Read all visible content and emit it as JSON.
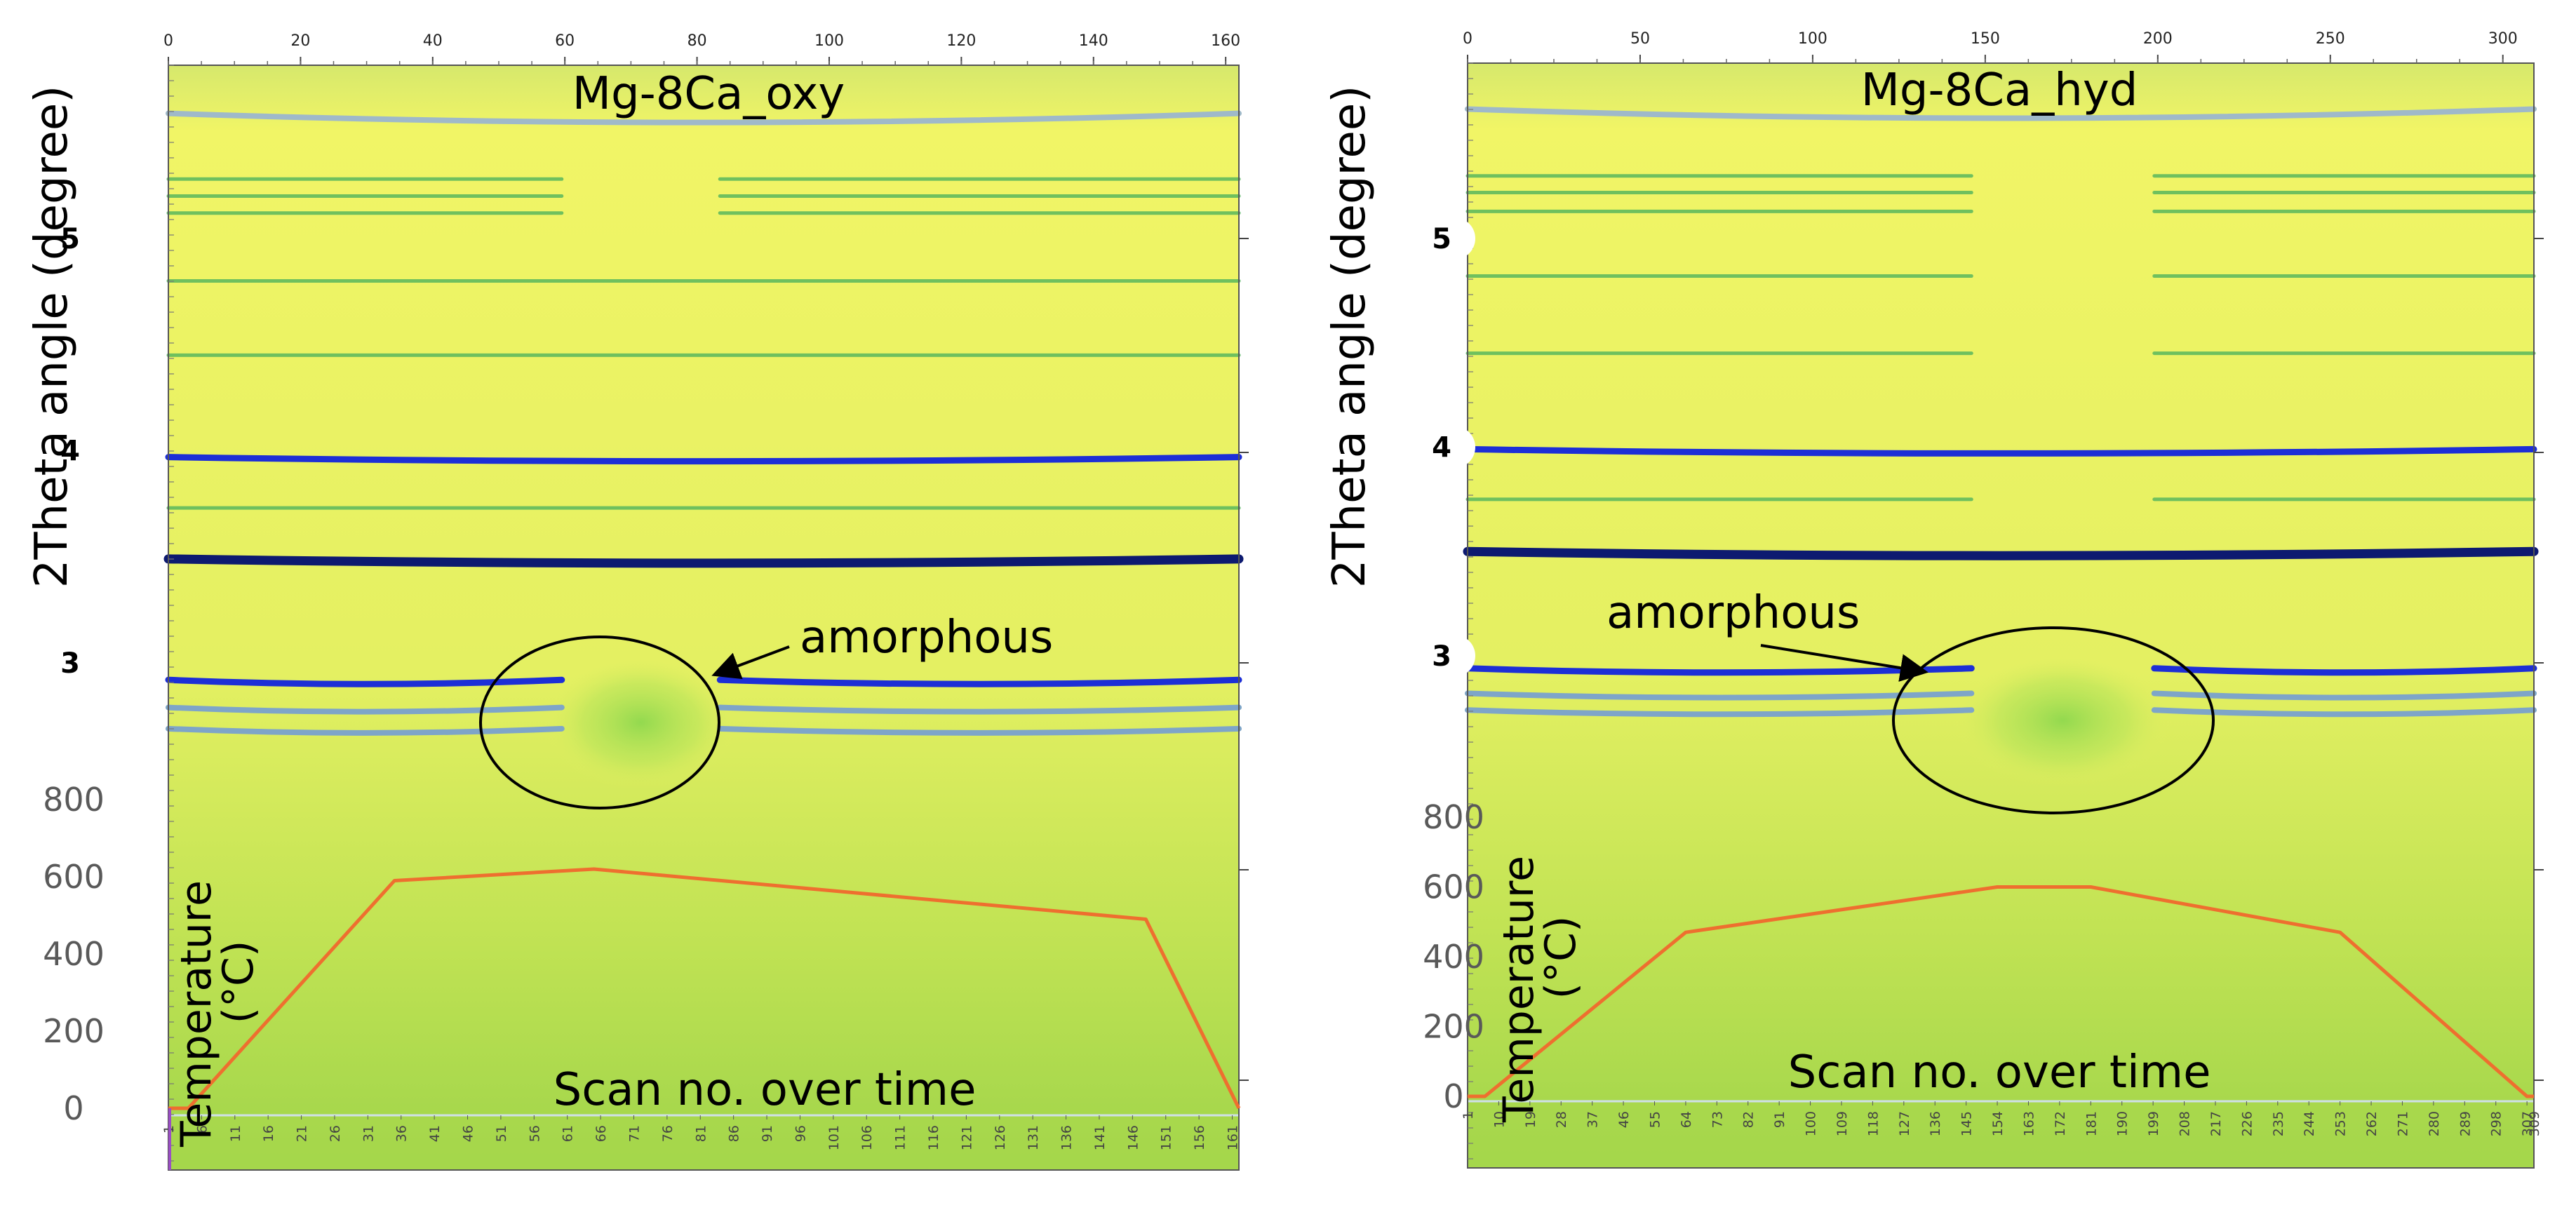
{
  "chart_data": [
    {
      "type": "heatmap",
      "title": "Mg-8Ca_oxy",
      "ylabel": "2Theta angle (degree)",
      "xlabel": "Scan no. over time",
      "temperature_label": [
        "Temperature",
        "(°C)"
      ],
      "annotation": "amorphous",
      "top_axis": {
        "range": [
          0,
          162
        ],
        "ticks": [
          0,
          20,
          40,
          60,
          80,
          100,
          120,
          140,
          160
        ]
      },
      "bottom_axis": {
        "range": [
          1,
          162
        ],
        "tick_start": 1,
        "tick_end": 161,
        "tick_step": 5
      },
      "theta_ticks": [
        "5",
        "4",
        "3"
      ],
      "temperature_ticks": [
        800,
        600,
        400,
        200,
        0
      ],
      "temperature_ylim": [
        0,
        800
      ],
      "amorphous_region": {
        "scan_start": 59,
        "scan_end": 84
      },
      "diffraction_lines": [
        {
          "theta": 5.55,
          "color": "#9fb9c9",
          "strength": "medium",
          "gap": false,
          "curved": true
        },
        {
          "theta": 5.28,
          "color": "#4fb35c",
          "strength": "weak",
          "gap": true
        },
        {
          "theta": 5.2,
          "color": "#4fb35c",
          "strength": "weak",
          "gap": true
        },
        {
          "theta": 5.12,
          "color": "#4fb35c",
          "strength": "weak",
          "gap": true
        },
        {
          "theta": 4.8,
          "color": "#4fb35c",
          "strength": "weak",
          "gap": false
        },
        {
          "theta": 4.45,
          "color": "#4fb35c",
          "strength": "weak",
          "gap": false
        },
        {
          "theta": 3.95,
          "color": "#1d2fd6",
          "strength": "strong",
          "gap": false
        },
        {
          "theta": 3.73,
          "color": "#4fb35c",
          "strength": "weak",
          "gap": false
        },
        {
          "theta": 3.47,
          "color": "#0d1a70",
          "strength": "very strong",
          "gap": false
        },
        {
          "theta": 2.9,
          "color": "#1d2fd6",
          "strength": "strong",
          "gap": true
        },
        {
          "theta": 2.77,
          "color": "#7ea5c8",
          "strength": "medium",
          "gap": true
        },
        {
          "theta": 2.67,
          "color": "#7ea5c8",
          "strength": "medium",
          "gap": true
        }
      ],
      "temperature_profile": {
        "scan": [
          1,
          4,
          35,
          65,
          148,
          162
        ],
        "temperature": [
          0,
          0,
          590,
          620,
          490,
          0
        ]
      }
    },
    {
      "type": "heatmap",
      "title": "Mg-8Ca_hyd",
      "ylabel": "2Theta angle (degree)",
      "xlabel": "Scan no. over time",
      "temperature_label": [
        "Temperature",
        "(°C)"
      ],
      "annotation": "amorphous",
      "top_axis": {
        "range": [
          0,
          309
        ],
        "ticks": [
          0,
          50,
          100,
          150,
          200,
          250,
          300
        ]
      },
      "bottom_axis": {
        "range": [
          1,
          309
        ],
        "tick_start": 1,
        "tick_end": 307,
        "tick_step": 9,
        "last_tick": 309
      },
      "theta_ticks": [
        "5",
        "4",
        "3"
      ],
      "temperature_ticks": [
        800,
        600,
        400,
        200,
        0
      ],
      "temperature_ylim": [
        0,
        800
      ],
      "amorphous_region": {
        "scan_start": 145,
        "scan_end": 200
      },
      "diffraction_lines": [
        {
          "theta": 5.58,
          "color": "#9fb9c9",
          "strength": "medium",
          "gap": false,
          "curved": true
        },
        {
          "theta": 5.3,
          "color": "#4fb35c",
          "strength": "weak",
          "gap": true
        },
        {
          "theta": 5.22,
          "color": "#4fb35c",
          "strength": "weak",
          "gap": true
        },
        {
          "theta": 5.13,
          "color": "#4fb35c",
          "strength": "weak",
          "gap": true
        },
        {
          "theta": 4.82,
          "color": "#4fb35c",
          "strength": "weak",
          "gap": true
        },
        {
          "theta": 4.45,
          "color": "#4fb35c",
          "strength": "weak",
          "gap": true
        },
        {
          "theta": 3.97,
          "color": "#1d2fd6",
          "strength": "strong",
          "gap": false
        },
        {
          "theta": 3.75,
          "color": "#4fb35c",
          "strength": "weak",
          "gap": true
        },
        {
          "theta": 3.48,
          "color": "#0d1a70",
          "strength": "very strong",
          "gap": false
        },
        {
          "theta": 2.92,
          "color": "#1d2fd6",
          "strength": "strong",
          "gap": true
        },
        {
          "theta": 2.8,
          "color": "#7ea5c8",
          "strength": "medium",
          "gap": true
        },
        {
          "theta": 2.72,
          "color": "#7ea5c8",
          "strength": "medium",
          "gap": true
        }
      ],
      "temperature_profile": {
        "scan": [
          1,
          6,
          64,
          154,
          181,
          253,
          307,
          309
        ],
        "temperature": [
          0,
          0,
          470,
          600,
          600,
          470,
          0,
          0
        ]
      }
    }
  ]
}
